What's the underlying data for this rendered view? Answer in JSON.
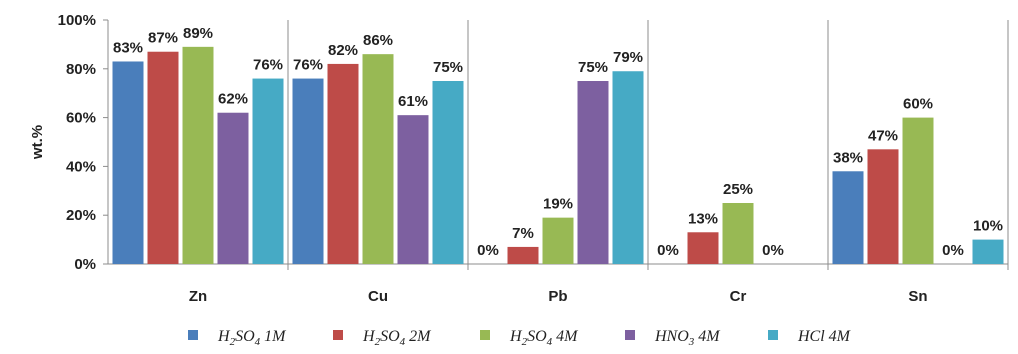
{
  "chart_data": {
    "type": "bar",
    "ylabel": "wt.%",
    "ylim": [
      0,
      100
    ],
    "yticks": [
      "0%",
      "20%",
      "40%",
      "60%",
      "80%",
      "100%"
    ],
    "grid": false,
    "legend_position": "bottom",
    "categories": [
      "Zn",
      "Cu",
      "Pb",
      "Cr",
      "Sn"
    ],
    "series": [
      {
        "name": "H2SO4 1M",
        "color": "#4a7ebb",
        "legend_parts": [
          [
            "H",
            ""
          ],
          [
            "2",
            "sub"
          ],
          [
            "SO",
            ""
          ],
          [
            "4",
            "sub"
          ],
          [
            " 1M",
            ""
          ]
        ],
        "values": [
          83,
          76,
          0,
          0,
          38
        ]
      },
      {
        "name": "H2SO4 2M",
        "color": "#be4b48",
        "legend_parts": [
          [
            "H",
            ""
          ],
          [
            "2",
            "sub"
          ],
          [
            "SO",
            ""
          ],
          [
            "4",
            "sub"
          ],
          [
            " 2M",
            ""
          ]
        ],
        "values": [
          87,
          82,
          7,
          13,
          47
        ]
      },
      {
        "name": "H2SO4 4M",
        "color": "#98b954",
        "legend_parts": [
          [
            "H",
            ""
          ],
          [
            "2",
            "sub"
          ],
          [
            "SO",
            ""
          ],
          [
            "4",
            "sub"
          ],
          [
            " 4M",
            ""
          ]
        ],
        "values": [
          89,
          86,
          19,
          25,
          60
        ]
      },
      {
        "name": "HNO3 4M",
        "color": "#7d60a0",
        "legend_parts": [
          [
            "HNO",
            ""
          ],
          [
            "3",
            "sub"
          ],
          [
            " 4M",
            ""
          ]
        ],
        "values": [
          62,
          61,
          75,
          0,
          0
        ]
      },
      {
        "name": "HCl 4M",
        "color": "#46aac5",
        "legend_parts": [
          [
            "HCl 4M",
            ""
          ]
        ],
        "values": [
          76,
          75,
          79,
          0,
          10
        ]
      }
    ],
    "data_labels": [
      [
        "83%",
        "76%",
        "0%",
        "0%",
        "38%"
      ],
      [
        "87%",
        "82%",
        "7%",
        "13%",
        "47%"
      ],
      [
        "89%",
        "86%",
        "19%",
        "25%",
        "60%"
      ],
      [
        "62%",
        "61%",
        "75%",
        "0%",
        "0%"
      ],
      [
        "76%",
        "75%",
        "79%",
        "",
        "10%"
      ]
    ]
  }
}
